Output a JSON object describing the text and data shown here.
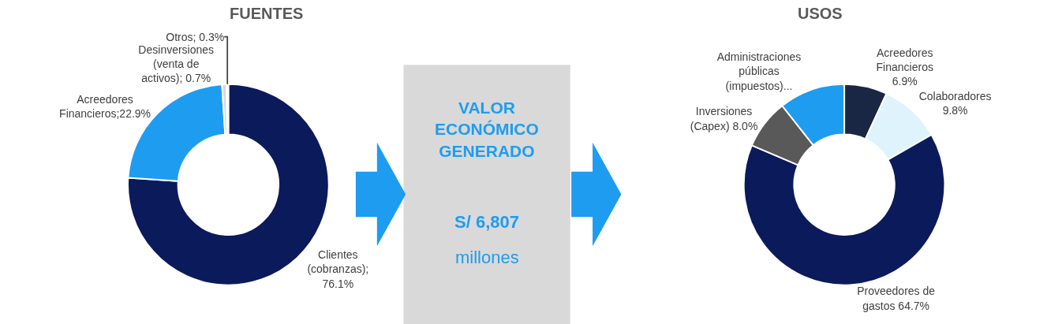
{
  "chart_data": [
    {
      "type": "donut",
      "title": "FUENTES",
      "categories": [
        "Clientes (cobranzas); 76.1%",
        "Acreedores Financieros;22.9%",
        "Desinversiones (venta de activos); 0.7%",
        "Otros; 0.3%"
      ],
      "values": [
        76.1,
        22.9,
        0.7,
        0.3
      ],
      "colors": [
        "#0b1a5b",
        "#1e9cf0",
        "#d9d9d9",
        "#f2e6f0"
      ]
    },
    {
      "type": "other",
      "annotations": [
        "VALOR ECONÓMICO GENERADO",
        "S/ 6,807",
        "millones"
      ]
    },
    {
      "type": "donut",
      "title": "USOS",
      "categories": [
        "Acreedores Financieros 6.9%",
        "Colaboradores 9.8%",
        "Proveedores de gastos 64.7%",
        "Inversiones (Capex) 8.0%",
        "Administraciones públicas (impuestos)..."
      ],
      "values": [
        6.9,
        9.8,
        64.7,
        8.0,
        10.6
      ],
      "colors": [
        "#1a2744",
        "#dff3fc",
        "#0b1a5b",
        "#595959",
        "#1e9cf0"
      ]
    }
  ]
}
